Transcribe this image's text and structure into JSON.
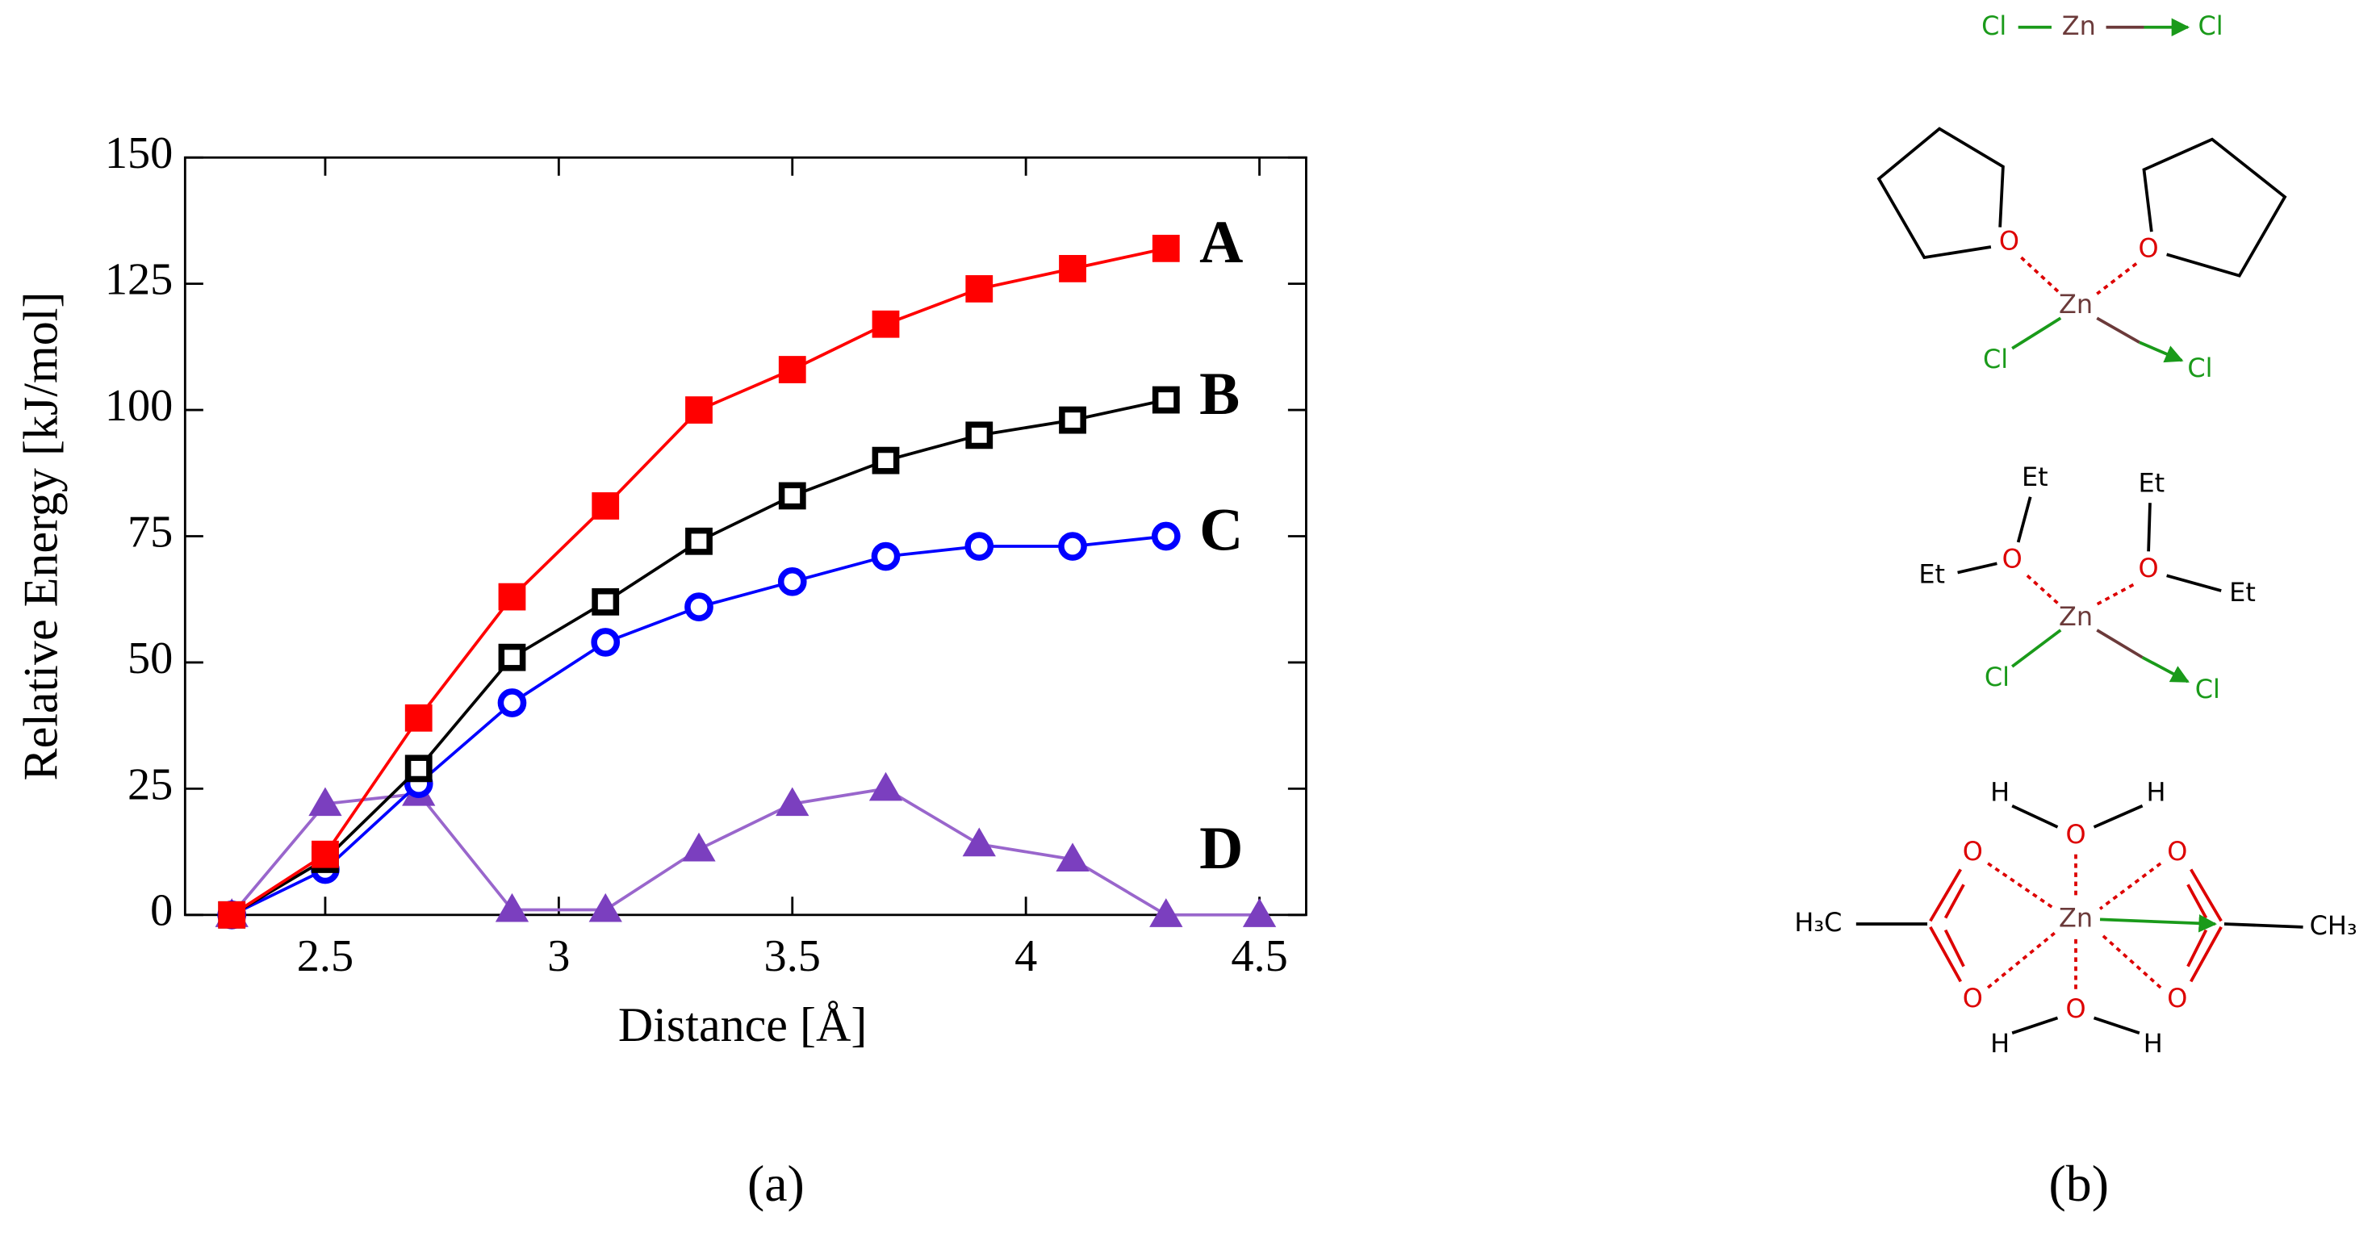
{
  "chart_data": {
    "type": "line",
    "x_label": "Distance [Å]",
    "y_label": "Relative Energy [kJ/mol]",
    "x": [
      2.3,
      2.5,
      2.7,
      2.9,
      3.1,
      3.3,
      3.5,
      3.7,
      3.9,
      4.1,
      4.3,
      4.5
    ],
    "series": [
      {
        "name": "A",
        "color": "#ff0000",
        "marker": "filled-square",
        "values": [
          0,
          12,
          39,
          63,
          81,
          100,
          108,
          117,
          124,
          128,
          132,
          null
        ]
      },
      {
        "name": "B",
        "color": "#000000",
        "marker": "open-square",
        "values": [
          0,
          11,
          29,
          51,
          62,
          74,
          83,
          90,
          95,
          98,
          102,
          null
        ]
      },
      {
        "name": "C",
        "color": "#0000ff",
        "marker": "open-circle",
        "values": [
          0,
          9,
          26,
          42,
          54,
          61,
          66,
          71,
          73,
          73,
          75,
          null
        ]
      },
      {
        "name": "D",
        "color": "#7b3fbf",
        "marker": "filled-triangle",
        "values": [
          0,
          22,
          24,
          1,
          1,
          13,
          22,
          25,
          14,
          11,
          0,
          0
        ]
      }
    ],
    "xlim": [
      2.2,
      4.6
    ],
    "xticks": [
      2.5,
      3,
      3.5,
      4,
      4.5
    ],
    "ylim": [
      0,
      150
    ],
    "yticks": [
      0,
      25,
      50,
      75,
      100,
      125,
      150
    ]
  },
  "panel_labels": [
    "(a)",
    "(b)"
  ],
  "structures": [
    {
      "atoms": [
        "Cl",
        "Zn",
        "Cl"
      ]
    },
    {
      "atoms": [
        "O",
        "O",
        "Zn",
        "Cl",
        "Cl"
      ]
    },
    {
      "atoms": [
        "Et",
        "Et",
        "O",
        "O",
        "Et",
        "Et",
        "Zn",
        "Cl",
        "Cl"
      ]
    },
    {
      "atoms": [
        "H",
        "O",
        "H",
        "O",
        "O",
        "H₃C",
        "Zn",
        "CH₃",
        "O",
        "O",
        "O",
        "H",
        "H"
      ]
    }
  ]
}
